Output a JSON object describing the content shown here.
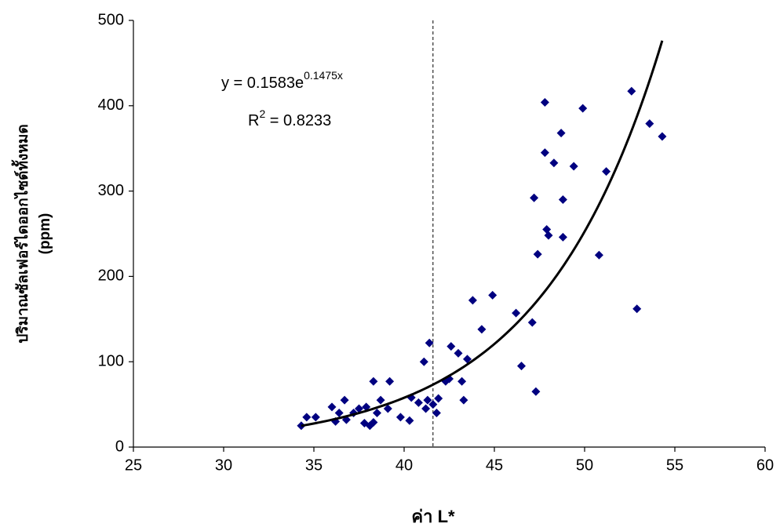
{
  "chart_data": {
    "type": "scatter",
    "x_label": "ค่า L*",
    "y_label": [
      "ปริมาณซัลเฟอร์ไดออกไซด์ทั้งหมด",
      "(ppm)"
    ],
    "x": [
      34.3,
      34.6,
      35.1,
      36.0,
      36.2,
      36.4,
      36.7,
      36.8,
      37.2,
      37.5,
      37.8,
      37.9,
      38.1,
      38.3,
      38.3,
      38.5,
      38.7,
      39.1,
      39.2,
      39.8,
      40.3,
      40.4,
      40.8,
      41.1,
      41.2,
      41.3,
      41.4,
      41.6,
      41.8,
      41.9,
      42.3,
      42.5,
      42.6,
      43.0,
      43.2,
      43.3,
      43.5,
      43.8,
      44.3,
      44.9,
      46.2,
      46.5,
      47.1,
      47.2,
      47.3,
      47.4,
      47.8,
      47.8,
      47.9,
      48.0,
      48.3,
      48.7,
      48.8,
      48.8,
      49.4,
      49.9,
      50.8,
      51.2,
      52.6,
      52.9,
      53.6,
      54.3
    ],
    "series": [
      {
        "color": "#000080",
        "values": [
          25,
          35,
          35,
          47,
          30,
          40,
          55,
          32,
          40,
          45,
          28,
          47,
          25,
          29,
          77,
          40,
          55,
          45,
          77,
          35,
          31,
          58,
          52,
          100,
          45,
          55,
          122,
          50,
          40,
          57,
          77,
          80,
          118,
          110,
          77,
          55,
          103,
          172,
          138,
          178,
          157,
          95,
          146,
          292,
          65,
          226,
          404,
          345,
          255,
          248,
          333,
          368,
          290,
          246,
          329,
          397,
          225,
          323,
          417,
          162,
          379,
          364
        ]
      }
    ],
    "xlim": [
      25,
      60
    ],
    "xticks": [
      25,
      30,
      35,
      40,
      45,
      50,
      55,
      60
    ],
    "ylim": [
      0,
      500
    ],
    "yticks": [
      0,
      100,
      200,
      300,
      400,
      500
    ],
    "grid": false,
    "reference_x": 41.6,
    "trendline": {
      "a": 0.1583,
      "b": 0.1475,
      "x_range": [
        34.3,
        54.3
      ],
      "color": "#000000",
      "equation": "y = 0.1583e",
      "exponent": "0.1475x",
      "r2_base": "R",
      "r2_sup": "2",
      "r2_text": " = 0.8233"
    }
  }
}
